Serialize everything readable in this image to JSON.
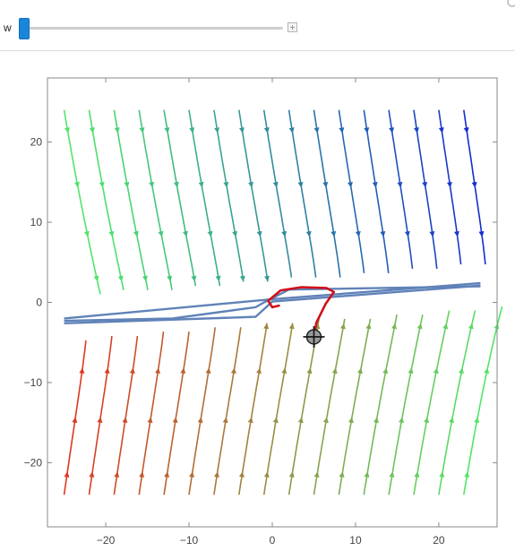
{
  "controls": {
    "w_label": "w",
    "w_slider_value": 0.0
  },
  "colors": {
    "frame": "#8a8a8a",
    "trajectory": "#d0101a",
    "separatrix": "#5f82b8",
    "palette_low": "#e2331c",
    "palette_mid": "#4fe86a",
    "palette_high": "#1020d8"
  },
  "chart_data": {
    "type": "stream",
    "xlim": [
      -27,
      27
    ],
    "ylim": [
      -28,
      28
    ],
    "x_ticks": [
      -20,
      -10,
      0,
      10,
      20
    ],
    "y_ticks": [
      -20,
      -10,
      0,
      10,
      20
    ],
    "x_tick_labels": [
      "−20",
      "−10",
      "0",
      "10",
      "20"
    ],
    "y_tick_labels": [
      "−20",
      "−10",
      "0",
      "10",
      "20"
    ],
    "grid": false,
    "stream_seed_x": [
      -25,
      -22,
      -19,
      -16,
      -13,
      -10,
      -7,
      -4,
      -1,
      2,
      5,
      8,
      11,
      14,
      17,
      20,
      23
    ],
    "separatrix_lines": [
      {
        "name": "",
        "points": [
          [
            -25,
            -2.3
          ],
          [
            -12,
            -2.0
          ],
          [
            -2,
            -0.6
          ],
          [
            -1,
            0.0
          ],
          [
            2,
            1.6
          ],
          [
            25,
            2.0
          ]
        ]
      },
      {
        "name": "",
        "points": [
          [
            -25,
            -2.0
          ],
          [
            0,
            0.4
          ],
          [
            25,
            2.4
          ]
        ]
      },
      {
        "name": "",
        "points": [
          [
            -25,
            -2.6
          ],
          [
            -2,
            -1.8
          ],
          [
            0,
            0.1
          ],
          [
            25,
            2.1
          ]
        ]
      }
    ],
    "trajectory": [
      [
        5,
        -4.3
      ],
      [
        5.3,
        -2.5
      ],
      [
        6.4,
        -0.2
      ],
      [
        7.4,
        1.3
      ],
      [
        6.5,
        1.8
      ],
      [
        3.5,
        1.9
      ],
      [
        1.0,
        1.5
      ],
      [
        -0.5,
        0.2
      ],
      [
        0.0,
        -0.6
      ],
      [
        0.8,
        -0.4
      ]
    ],
    "locator": [
      5,
      -4.3
    ]
  }
}
